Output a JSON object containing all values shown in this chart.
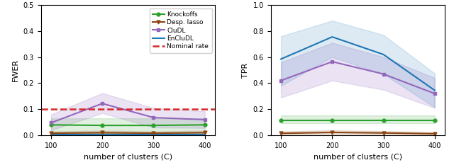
{
  "x": [
    100,
    200,
    300,
    400
  ],
  "fwer": {
    "knockoffs": [
      0.04,
      0.038,
      0.038,
      0.04
    ],
    "knockoffs_lo": [
      0.01,
      0.008,
      0.008,
      0.01
    ],
    "knockoffs_hi": [
      0.065,
      0.065,
      0.065,
      0.065
    ],
    "desp_lasso": [
      0.008,
      0.01,
      0.008,
      0.01
    ],
    "desp_lasso_lo": [
      0.0,
      0.0,
      0.0,
      0.0
    ],
    "desp_lasso_hi": [
      0.015,
      0.018,
      0.015,
      0.018
    ],
    "cludl": [
      0.048,
      0.122,
      0.068,
      0.06
    ],
    "cludl_lo": [
      0.02,
      0.085,
      0.03,
      0.028
    ],
    "cludl_hi": [
      0.08,
      0.162,
      0.105,
      0.092
    ],
    "encludl": [
      0.003,
      0.003,
      0.003,
      0.003
    ],
    "encludl_lo": [
      0.0,
      0.0,
      0.0,
      0.0
    ],
    "encludl_hi": [
      0.008,
      0.008,
      0.01,
      0.01
    ],
    "nominal": 0.1
  },
  "tpr": {
    "knockoffs": [
      0.115,
      0.115,
      0.115,
      0.115
    ],
    "knockoffs_lo": [
      0.09,
      0.09,
      0.09,
      0.09
    ],
    "knockoffs_hi": [
      0.155,
      0.155,
      0.155,
      0.155
    ],
    "desp_lasso": [
      0.015,
      0.022,
      0.018,
      0.012
    ],
    "desp_lasso_lo": [
      0.0,
      0.0,
      0.0,
      0.0
    ],
    "desp_lasso_hi": [
      0.03,
      0.038,
      0.032,
      0.025
    ],
    "cludl": [
      0.42,
      0.565,
      0.47,
      0.32
    ],
    "cludl_lo": [
      0.29,
      0.42,
      0.35,
      0.21
    ],
    "cludl_hi": [
      0.56,
      0.71,
      0.6,
      0.44
    ],
    "encludl": [
      0.585,
      0.755,
      0.62,
      0.345
    ],
    "encludl_lo": [
      0.38,
      0.6,
      0.47,
      0.215
    ],
    "encludl_hi": [
      0.76,
      0.88,
      0.77,
      0.475
    ]
  },
  "colors": {
    "knockoffs": "#2ca02c",
    "desp_lasso": "#8b4513",
    "cludl": "#9467bd",
    "encludl": "#1f77b4",
    "nominal": "#d62728"
  },
  "fwer_ylim": [
    0.0,
    0.5
  ],
  "tpr_ylim": [
    0.0,
    1.0
  ],
  "xlabel": "number of clusters (C)",
  "fwer_ylabel": "FWER",
  "tpr_ylabel": "TPR",
  "legend_labels": [
    "Knockoffs",
    "Desp. lasso",
    "CluDL",
    "EnCluDL",
    "Nominal rate"
  ]
}
